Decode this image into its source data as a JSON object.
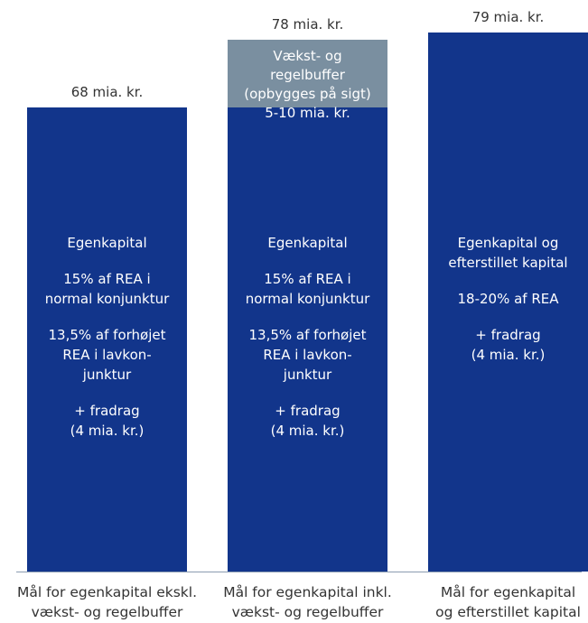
{
  "chart_data": {
    "type": "bar",
    "stacked": true,
    "unit": "mia. kr.",
    "ylim": [
      0,
      90
    ],
    "categories": [
      [
        "Mål for egenkapital ekskl.",
        "vækst- og regelbuffer"
      ],
      [
        "Mål for egenkapital inkl.",
        "vækst- og regelbuffer"
      ],
      [
        "Mål for egenkapital",
        "og efterstillet kapital"
      ]
    ],
    "totals": [
      68,
      78,
      79
    ],
    "total_labels": [
      "68 mia. kr.",
      "78 mia. kr.",
      "79 mia. kr."
    ],
    "series": [
      {
        "values": [
          68,
          68,
          79
        ],
        "color": "#12358b"
      },
      {
        "values": [
          0,
          10,
          0
        ],
        "color": "#7a8fa0"
      }
    ],
    "bar_texts": [
      [
        [
          "Egenkapital"
        ],
        [
          "15% af REA i",
          "normal konjunktur"
        ],
        [
          "13,5% af forhøjet",
          "REA i lavkon-",
          "junktur"
        ],
        [
          "+ fradrag",
          "(4 mia. kr.)"
        ]
      ],
      [
        [
          "Egenkapital"
        ],
        [
          "15% af REA i",
          "normal konjunktur"
        ],
        [
          "13,5% af forhøjet",
          "REA i lavkon-",
          "junktur"
        ],
        [
          "+ fradrag",
          "(4 mia. kr.)"
        ]
      ],
      [
        [
          "Egenkapital og",
          "efterstillet kapital"
        ],
        [
          "18-20% af REA"
        ],
        [
          "+ fradrag",
          "(4 mia. kr.)"
        ]
      ]
    ],
    "buffer_text": [
      "Vækst- og",
      "regelbuffer",
      "(opbygges på sigt)",
      "5-10 mia. kr."
    ]
  }
}
